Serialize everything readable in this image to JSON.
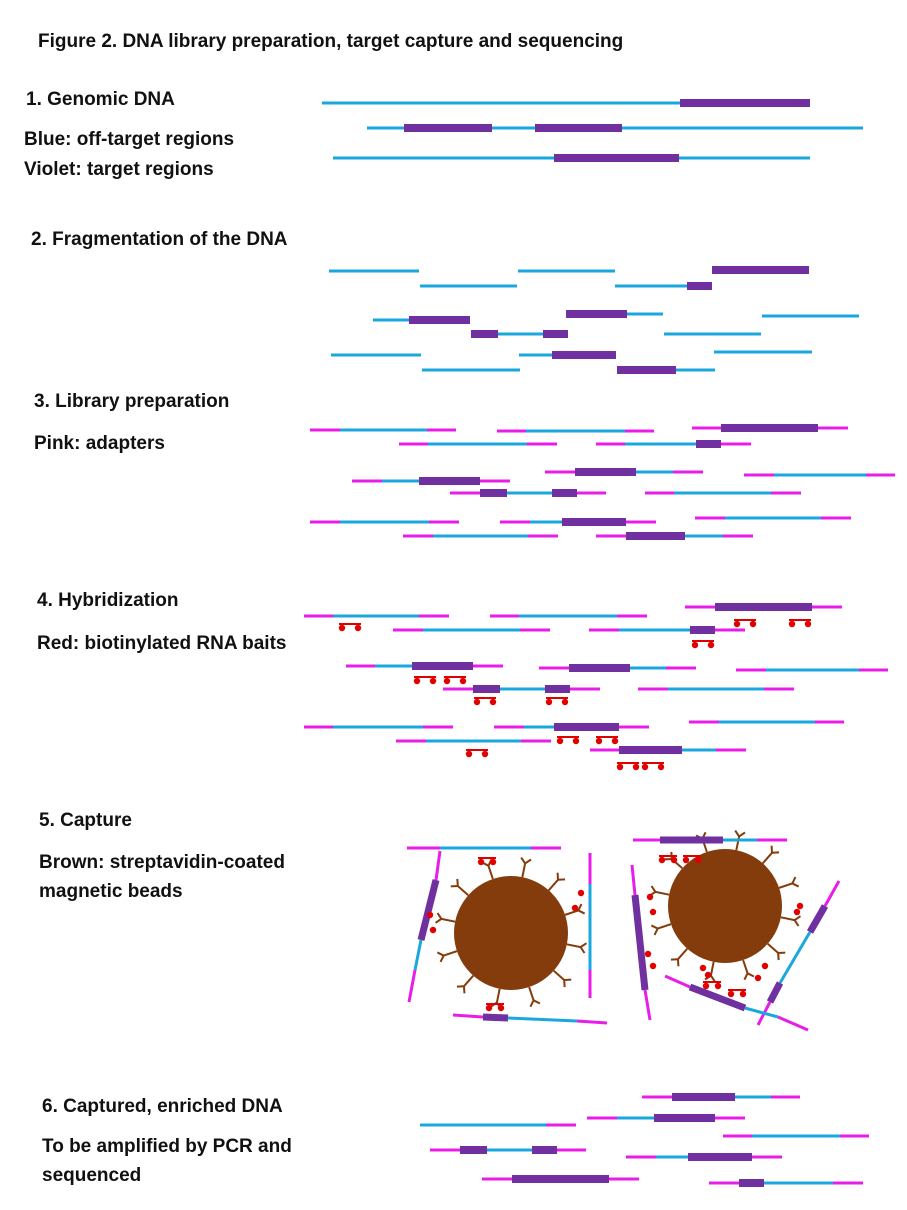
{
  "figure_title": "Figure 2. DNA library preparation, target capture and sequencing",
  "colors": {
    "off_target": "#1aa7de",
    "target": "#7030a0",
    "adapter": "#e81ee8",
    "bait": "#e00000",
    "bead": "#843c0c"
  },
  "steps": [
    {
      "heading": "1. Genomic DNA",
      "notes": [
        "Blue: off-target regions",
        "Violet: target regions"
      ]
    },
    {
      "heading": "2. Fragmentation of the DNA",
      "notes": []
    },
    {
      "heading": "3. Library preparation",
      "notes": [
        "Pink: adapters"
      ]
    },
    {
      "heading": "4. Hybridization",
      "notes": [
        "Red: biotinylated RNA baits"
      ]
    },
    {
      "heading": "5. Capture",
      "notes": [
        "Brown: streptavidin-coated",
        "magnetic beads"
      ]
    },
    {
      "heading": "6. Captured, enriched DNA",
      "notes": [
        "To be amplified by PCR and",
        "sequenced"
      ]
    }
  ]
}
